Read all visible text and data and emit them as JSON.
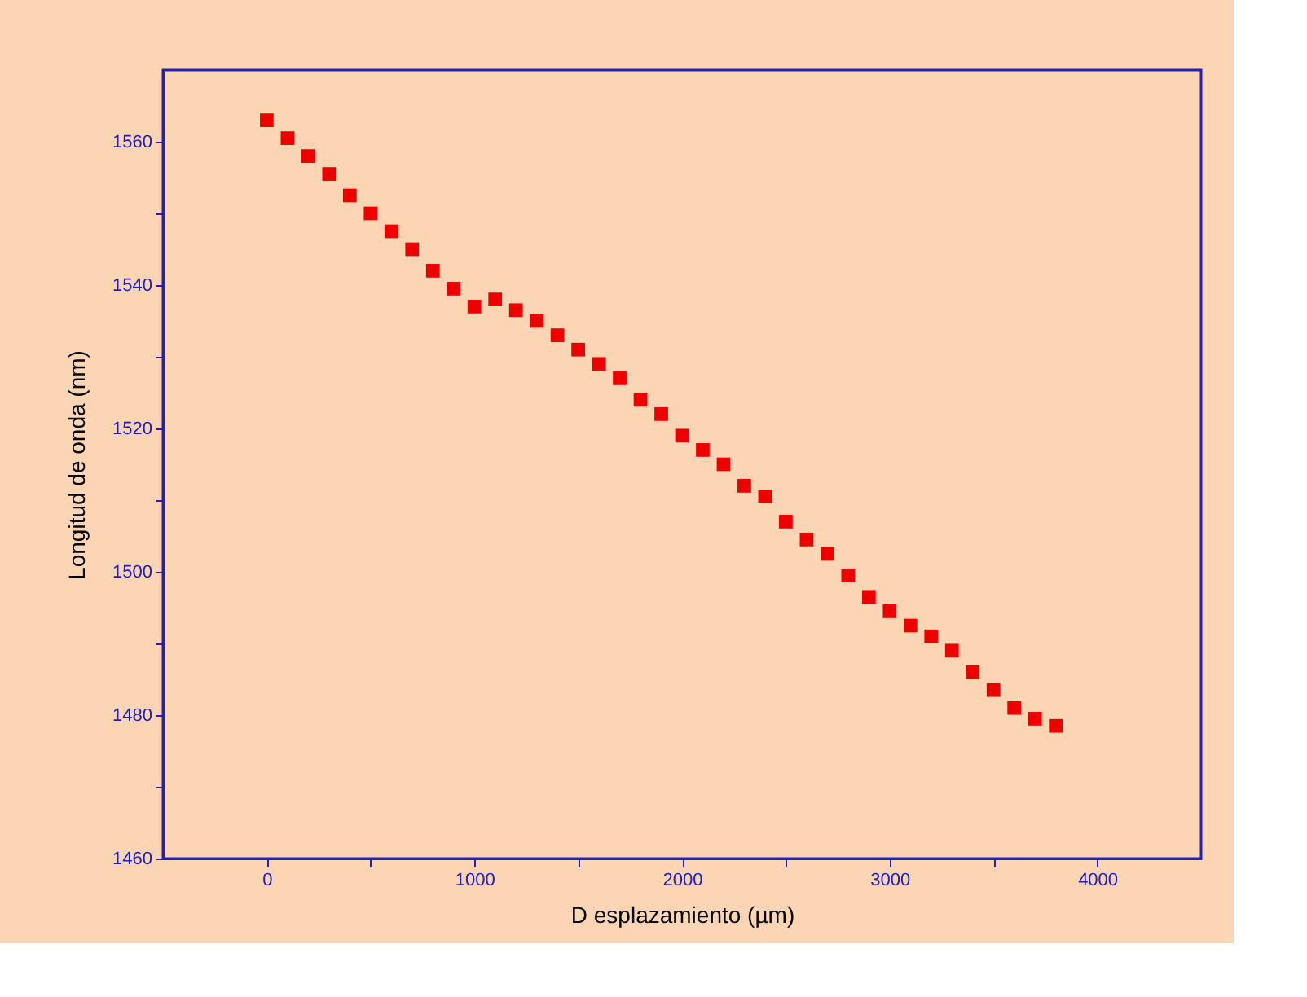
{
  "chart_data": {
    "type": "scatter",
    "xlabel": "D esplazamiento (µm)",
    "ylabel": "Longitud de onda (nm)",
    "x": [
      0,
      100,
      200,
      300,
      400,
      500,
      600,
      700,
      800,
      900,
      1000,
      1100,
      1200,
      1300,
      1400,
      1500,
      1600,
      1700,
      1800,
      1900,
      2000,
      2100,
      2200,
      2300,
      2400,
      2500,
      2600,
      2700,
      2800,
      2900,
      3000,
      3100,
      3200,
      3300,
      3400,
      3500,
      3600,
      3700,
      3800
    ],
    "series": [
      {
        "color": "#ee0000",
        "values": [
          1563,
          1560.5,
          1558,
          1555.5,
          1552.5,
          1550,
          1547.5,
          1545,
          1542,
          1539.5,
          1537,
          1538,
          1536.5,
          1535,
          1533,
          1531,
          1529,
          1527,
          1524,
          1522,
          1519,
          1517,
          1515,
          1512,
          1510.5,
          1507,
          1504.5,
          1502.5,
          1499.5,
          1496.5,
          1494.5,
          1492.5,
          1491,
          1489,
          1486,
          1483.5,
          1481,
          1479.5,
          1478.5
        ]
      }
    ],
    "xlim": [
      -500,
      4500
    ],
    "xticks": [
      0,
      {
        "value": 500,
        "label": null
      },
      1000,
      {
        "value": 1500,
        "label": null
      },
      2000,
      {
        "value": 2500,
        "label": null
      },
      3000,
      {
        "value": 3500,
        "label": null
      },
      4000
    ],
    "ylim": [
      1460,
      1570
    ],
    "yticks": [
      1460,
      {
        "value": 1470,
        "label": null
      },
      1480,
      {
        "value": 1490,
        "label": null
      },
      1500,
      {
        "value": 1510,
        "label": null
      },
      1520,
      {
        "value": 1530,
        "label": null
      },
      1540,
      {
        "value": 1550,
        "label": null
      },
      1560
    ],
    "marker": "square",
    "grid": false,
    "legend": false
  }
}
